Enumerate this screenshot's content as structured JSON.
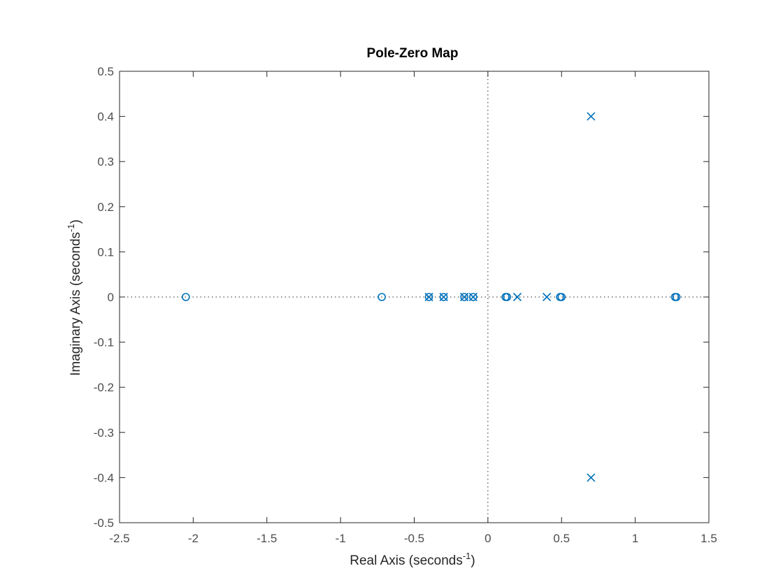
{
  "chart_data": {
    "type": "scatter",
    "title": "Pole-Zero Map",
    "xlabel": "Real Axis (seconds",
    "ylabel": "Imaginary Axis (seconds",
    "unit_superscript": "-1",
    "unit_close": ")",
    "xlim": [
      -2.5,
      1.5
    ],
    "ylim": [
      -0.5,
      0.5
    ],
    "xticks": [
      -2.5,
      -2,
      -1.5,
      -1,
      -0.5,
      0,
      0.5,
      1,
      1.5
    ],
    "xtick_labels": [
      "-2.5",
      "-2",
      "-1.5",
      "-1",
      "-0.5",
      "0",
      "0.5",
      "1",
      "1.5"
    ],
    "yticks": [
      0.5,
      0.4,
      0.3,
      0.2,
      0.1,
      0,
      -0.1,
      -0.2,
      -0.3,
      -0.4,
      -0.5
    ],
    "ytick_labels": [
      "0.5",
      "0.4",
      "0.3",
      "0.2",
      "0.1",
      "0",
      "-0.1",
      "-0.2",
      "-0.3",
      "-0.4",
      "-0.5"
    ],
    "grid": false,
    "color": "#0072bd",
    "series": [
      {
        "marker": "x",
        "points": [
          {
            "x": -0.4,
            "y": 0
          },
          {
            "x": -0.3,
            "y": 0
          },
          {
            "x": -0.16,
            "y": 0
          },
          {
            "x": -0.1,
            "y": 0
          },
          {
            "x": 0.2,
            "y": 0
          },
          {
            "x": 0.4,
            "y": 0
          },
          {
            "x": 0.7,
            "y": 0.4
          },
          {
            "x": 0.7,
            "y": -0.4
          }
        ]
      },
      {
        "marker": "o",
        "points": [
          {
            "x": -2.05,
            "y": 0
          },
          {
            "x": -0.72,
            "y": 0
          },
          {
            "x": -0.4,
            "y": 0
          },
          {
            "x": -0.3,
            "y": 0
          },
          {
            "x": -0.16,
            "y": 0
          },
          {
            "x": -0.1,
            "y": 0
          },
          {
            "x": 0.12,
            "y": 0
          },
          {
            "x": 0.13,
            "y": 0
          },
          {
            "x": 0.49,
            "y": 0
          },
          {
            "x": 0.5,
            "y": 0
          },
          {
            "x": 1.27,
            "y": 0
          },
          {
            "x": 1.28,
            "y": 0
          }
        ]
      }
    ]
  }
}
